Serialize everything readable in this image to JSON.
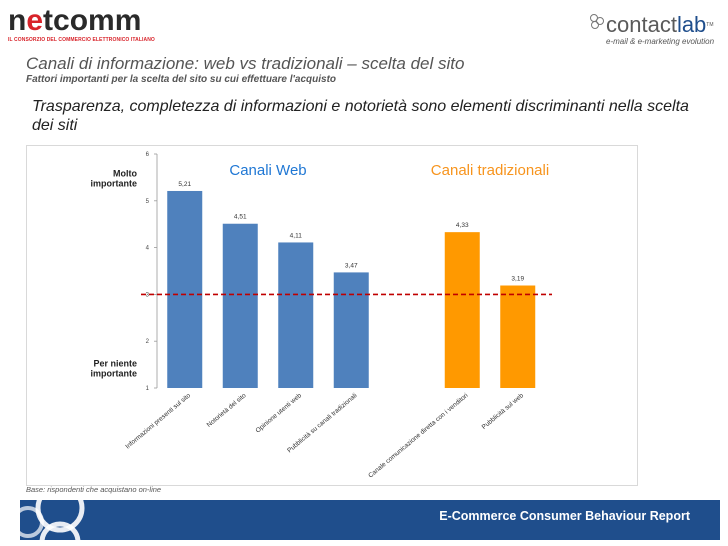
{
  "logos": {
    "netcomm_prefix": "n",
    "netcomm_e": "e",
    "netcomm_suffix": "tcomm",
    "netcomm_tagline": "IL CONSORZIO DEL COMMERCIO ELETTRONICO ITALIANO",
    "contactlab_part1": "contact",
    "contactlab_part2": "lab",
    "contactlab_tm": "TM",
    "contactlab_tagline": "e-mail & e-marketing evolution"
  },
  "header": {
    "title": "Canali di informazione: web vs tradizionali – scelta del sito",
    "subtitle": "Fattori importanti per la scelta del sito su cui effettuare l'acquisto",
    "headline": "Trasparenza, completezza di informazioni e notorietà sono elementi discriminanti nella scelta dei siti"
  },
  "chart_data": {
    "type": "bar",
    "categories": [
      "Informazioni presenti sul sito",
      "Notorietà del sito",
      "Opinione utenti web",
      "Pubblicità su canali tradizionali",
      "",
      "Canale comunicazione diretta con i venditori",
      "Pubblicità  sul web"
    ],
    "values": [
      5.21,
      4.51,
      4.11,
      3.47,
      null,
      4.33,
      3.19
    ],
    "value_labels": [
      "5,21",
      "4,51",
      "4,11",
      "3,47",
      "",
      "4,33",
      "3,19"
    ],
    "groups": [
      {
        "name": "Canali Web",
        "color": "#1f77d4",
        "bar_color": "#4f81bd",
        "indices": [
          0,
          1,
          2,
          3
        ]
      },
      {
        "name": "Canali tradizionali",
        "color": "#f7941d",
        "bar_color": "#ff9900",
        "indices": [
          5,
          6
        ]
      }
    ],
    "reference_line": {
      "value": 3,
      "color": "#c00000",
      "style": "dashed"
    },
    "ylim": [
      1,
      6
    ],
    "yticks": [
      1,
      2,
      3,
      4,
      5,
      6
    ],
    "scale_top_label": [
      "Molto",
      "importante"
    ],
    "scale_bottom_label": [
      "Per niente",
      "importante"
    ],
    "grid": false
  },
  "footnote": "Base: rispondenti che acquistano on-line",
  "footer": {
    "title": "E-Commerce Consumer Behaviour Report",
    "band_color": "#1f4e8c"
  }
}
